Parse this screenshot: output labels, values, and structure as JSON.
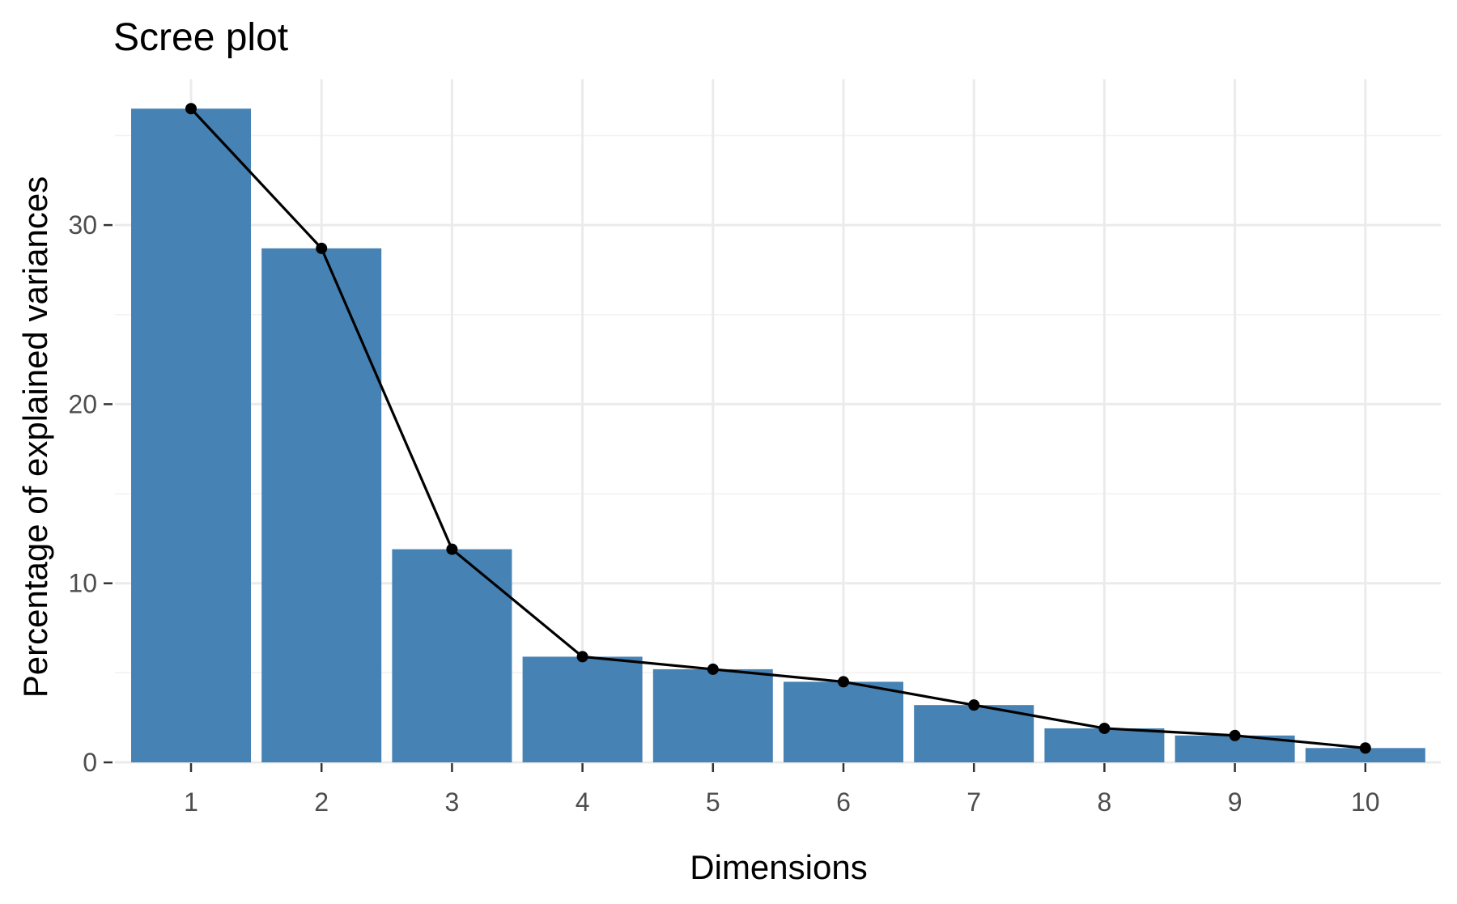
{
  "chart_data": {
    "type": "bar",
    "title": "Scree plot",
    "xlabel": "Dimensions",
    "ylabel": "Percentage of explained variances",
    "categories": [
      "1",
      "2",
      "3",
      "4",
      "5",
      "6",
      "7",
      "8",
      "9",
      "10"
    ],
    "values": [
      36.5,
      28.7,
      11.9,
      5.9,
      5.2,
      4.5,
      3.2,
      1.9,
      1.5,
      0.8
    ],
    "overlay_line": {
      "type": "line+points",
      "values": [
        36.5,
        28.7,
        11.9,
        5.9,
        5.2,
        4.5,
        3.2,
        1.9,
        1.5,
        0.8
      ],
      "color": "#000000"
    },
    "ylim": [
      0,
      38
    ],
    "y_ticks": [
      0,
      10,
      20,
      30
    ],
    "grid": true,
    "legend": "none",
    "bar_color": "#4682B4"
  }
}
